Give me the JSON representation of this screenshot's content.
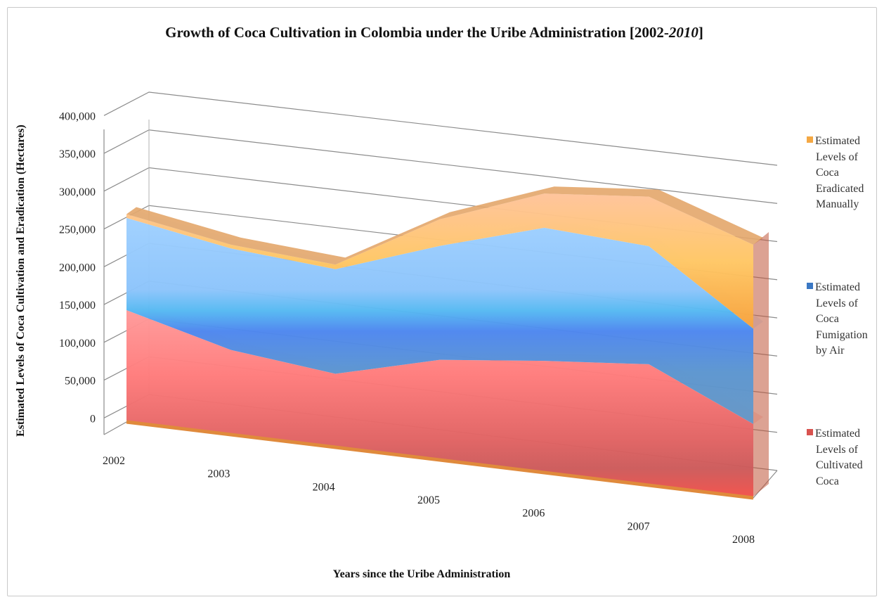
{
  "chart_data": {
    "type": "area",
    "title_main": "Growth of Coca Cultivation in Colombia under the Uribe Administration [2002-",
    "title_italic": "2010",
    "title_end": "]",
    "xlabel": "Years since the Uribe Administration",
    "ylabel": "Estimated Levels of Coca Cultivation and Eradication (Hectares)",
    "categories": [
      "2002",
      "2003",
      "2004",
      "2005",
      "2006",
      "2007",
      "2008"
    ],
    "yticks": [
      "0",
      "50,000",
      "100,000",
      "150,000",
      "200,000",
      "250,000",
      "300,000",
      "350,000",
      "400,000"
    ],
    "ylim": [
      0,
      400000
    ],
    "stacked": true,
    "grid": true,
    "legend_position": "right",
    "series": [
      {
        "name": "Estimated Levels of Cultivated Coca",
        "values": [
          146000,
          110000,
          95000,
          130000,
          145000,
          157000,
          95000
        ],
        "color": "#f26a6f"
      },
      {
        "name": "Estimated Levels of Coca Fumigation by Air",
        "values": [
          122000,
          134000,
          138000,
          150000,
          175000,
          155000,
          125000
        ],
        "color": "#5b9bd5"
      },
      {
        "name": "Estimated Levels of Coca Eradicated Manually",
        "values": [
          5000,
          5000,
          6000,
          35000,
          45000,
          65000,
          110000
        ],
        "color": "#f4a844"
      }
    ]
  },
  "legend": [
    {
      "lines": [
        "Estimated",
        "Levels of",
        "Coca",
        "Eradicated",
        "Manually"
      ],
      "color": "#f4a844"
    },
    {
      "lines": [
        "Estimated",
        "Levels of",
        "Coca",
        "Fumigation",
        "by Air"
      ],
      "color": "#3b78c4"
    },
    {
      "lines": [
        "Estimated",
        "Levels of",
        "Cultivated",
        "Coca"
      ],
      "color": "#d9534f"
    }
  ]
}
